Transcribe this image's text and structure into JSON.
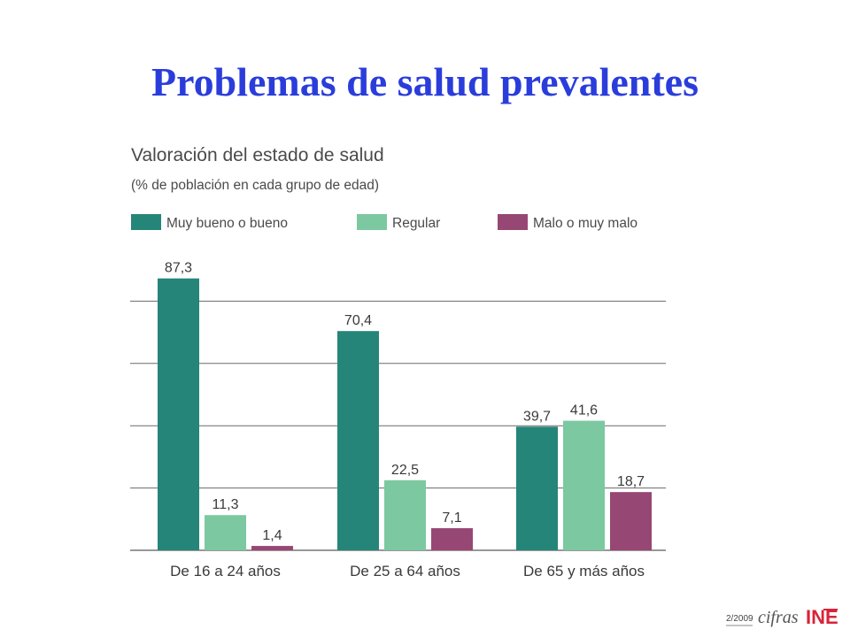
{
  "slide": {
    "title": "Problemas de salud prevalentes"
  },
  "colors": {
    "title": "#2a3ddb",
    "series": [
      "#258579",
      "#7cc8a0",
      "#974773"
    ]
  },
  "chart_data": {
    "type": "bar",
    "title": "Valoración del estado de salud",
    "subtitle": "(% de población en cada grupo de edad)",
    "categories": [
      "De 16 a 24 años",
      "De 25 a 64 años",
      "De 65 y más años"
    ],
    "series": [
      {
        "name": "Muy bueno o bueno",
        "values": [
          87.3,
          70.4,
          39.7
        ],
        "labels": [
          "87,3",
          "70,4",
          "39,7"
        ]
      },
      {
        "name": "Regular",
        "values": [
          11.3,
          22.5,
          41.6
        ],
        "labels": [
          "11,3",
          "22,5",
          "41,6"
        ]
      },
      {
        "name": "Malo o muy malo",
        "values": [
          1.4,
          7.1,
          18.7
        ],
        "labels": [
          "1,4",
          "7,1",
          "18,7"
        ]
      }
    ],
    "ylim": [
      0,
      100
    ],
    "grid": true,
    "legend": "top"
  },
  "footer": {
    "date": "2/2009",
    "logo_word": "cifras",
    "logo_brand": "INE"
  }
}
